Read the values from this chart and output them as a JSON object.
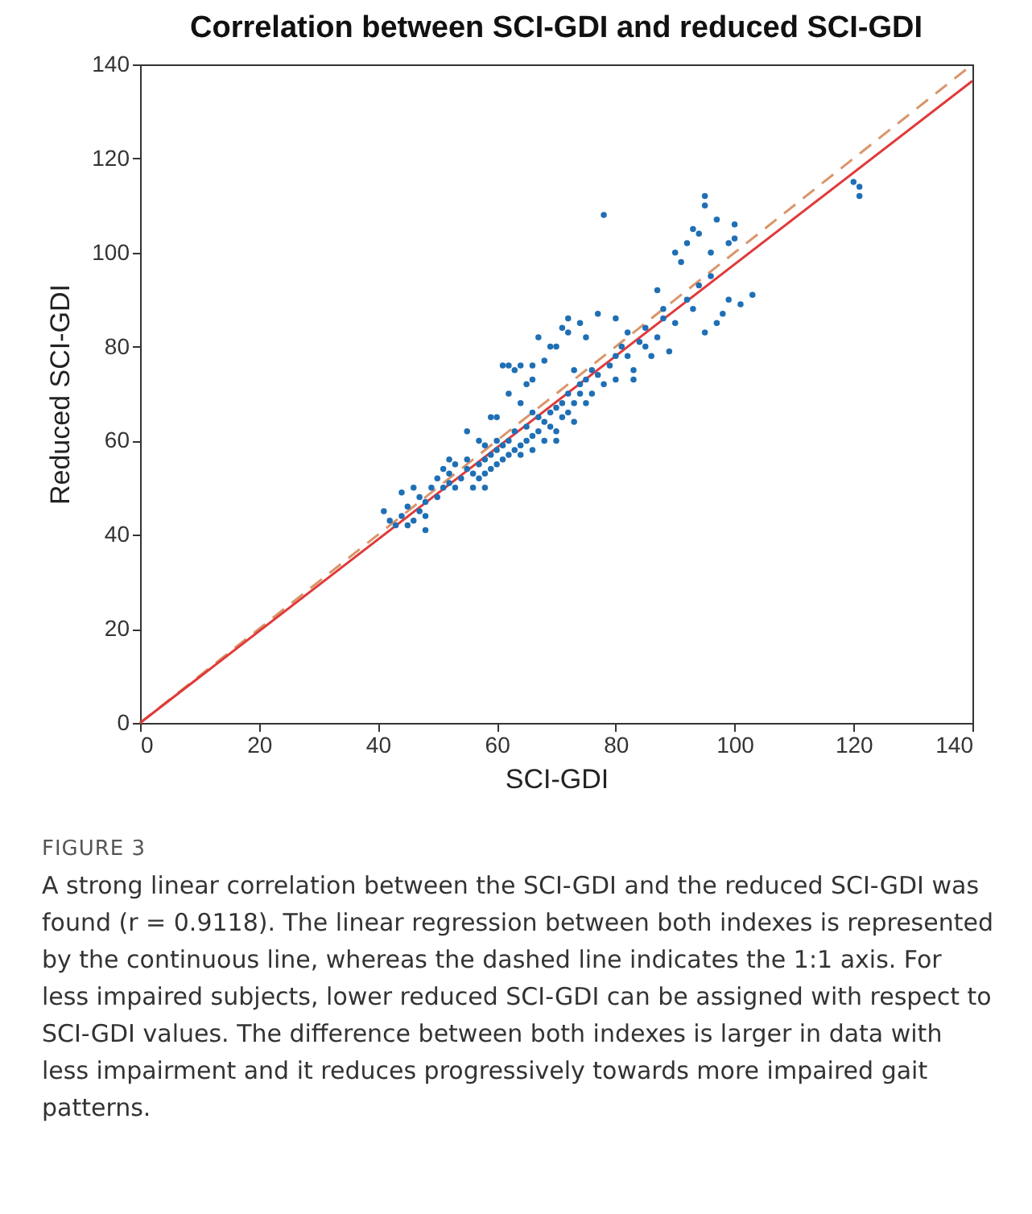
{
  "chart_data": {
    "type": "scatter",
    "title": "Correlation between SCI-GDI and reduced SCI-GDI",
    "xlabel": "SCI-GDI",
    "ylabel": "Reduced SCI-GDI",
    "xlim": [
      0,
      140
    ],
    "ylim": [
      0,
      140
    ],
    "xticks": [
      0,
      20,
      40,
      60,
      80,
      100,
      120,
      140
    ],
    "yticks": [
      0,
      20,
      40,
      60,
      80,
      100,
      120,
      140
    ],
    "grid": false,
    "series": [
      {
        "color": "#1f6fb5",
        "marker": "circle",
        "x": [
          41,
          42,
          43,
          44,
          45,
          45,
          46,
          47,
          47,
          48,
          48,
          49,
          50,
          50,
          51,
          51,
          52,
          52,
          53,
          53,
          54,
          55,
          55,
          56,
          56,
          57,
          57,
          58,
          58,
          58,
          59,
          59,
          60,
          60,
          60,
          61,
          61,
          62,
          62,
          62,
          63,
          63,
          64,
          64,
          64,
          65,
          65,
          66,
          66,
          66,
          67,
          67,
          68,
          68,
          68,
          69,
          69,
          70,
          70,
          70,
          71,
          71,
          71,
          72,
          72,
          72,
          73,
          73,
          73,
          74,
          74,
          75,
          75,
          76,
          76,
          77,
          77,
          78,
          78,
          79,
          80,
          80,
          81,
          82,
          82,
          83,
          84,
          85,
          85,
          86,
          87,
          88,
          88,
          89,
          90,
          90,
          91,
          92,
          92,
          93,
          93,
          94,
          94,
          95,
          95,
          95,
          96,
          96,
          97,
          97,
          98,
          99,
          99,
          100,
          100,
          101,
          103,
          55,
          52,
          57,
          60,
          62,
          65,
          66,
          67,
          69,
          61,
          64,
          58,
          48,
          44,
          46,
          59,
          120,
          121,
          121,
          75,
          74,
          80,
          83,
          87,
          72,
          63,
          66,
          70
        ],
        "values": [
          45,
          43,
          42,
          44,
          42,
          46,
          43,
          45,
          48,
          44,
          47,
          50,
          48,
          52,
          50,
          54,
          51,
          53,
          55,
          50,
          52,
          54,
          56,
          50,
          53,
          52,
          55,
          53,
          56,
          59,
          54,
          57,
          55,
          58,
          60,
          56,
          59,
          57,
          60,
          76,
          58,
          62,
          59,
          57,
          76,
          60,
          63,
          61,
          58,
          73,
          62,
          65,
          60,
          64,
          77,
          63,
          66,
          62,
          67,
          80,
          65,
          68,
          84,
          66,
          70,
          86,
          64,
          68,
          75,
          70,
          72,
          73,
          82,
          75,
          70,
          74,
          87,
          72,
          108,
          76,
          78,
          73,
          80,
          83,
          78,
          75,
          81,
          84,
          80,
          78,
          82,
          86,
          88,
          79,
          85,
          100,
          98,
          102,
          90,
          88,
          105,
          104,
          93,
          110,
          112,
          83,
          100,
          95,
          107,
          85,
          87,
          102,
          90,
          103,
          106,
          89,
          91,
          62,
          56,
          60,
          65,
          70,
          72,
          76,
          82,
          80,
          76,
          68,
          50,
          41,
          49,
          50,
          65,
          115,
          114,
          112,
          68,
          85,
          86,
          73,
          92,
          83,
          75,
          66,
          60
        ]
      },
      {
        "type": "line",
        "color": "#e03a3a",
        "line_style": "solid",
        "x": [
          0,
          140
        ],
        "values": [
          0,
          136.5
        ]
      },
      {
        "type": "line",
        "color": "#d9956a",
        "line_style": "dashed",
        "x": [
          0,
          140
        ],
        "values": [
          0,
          140
        ]
      }
    ],
    "annotations": [
      "FIGURE 3",
      "A strong linear correlation between the SCI-GDI and the reduced SCI-GDI was found (r = 0.9118). The linear regression between both indexes is represented by the continuous line, whereas the dashed line indicates the 1:1 axis. For less impaired subjects, lower reduced SCI-GDI can be assigned with respect to SCI-GDI values. The difference between both indexes is larger in data with less impairment and it reduces progressively towards more impaired gait patterns."
    ]
  }
}
